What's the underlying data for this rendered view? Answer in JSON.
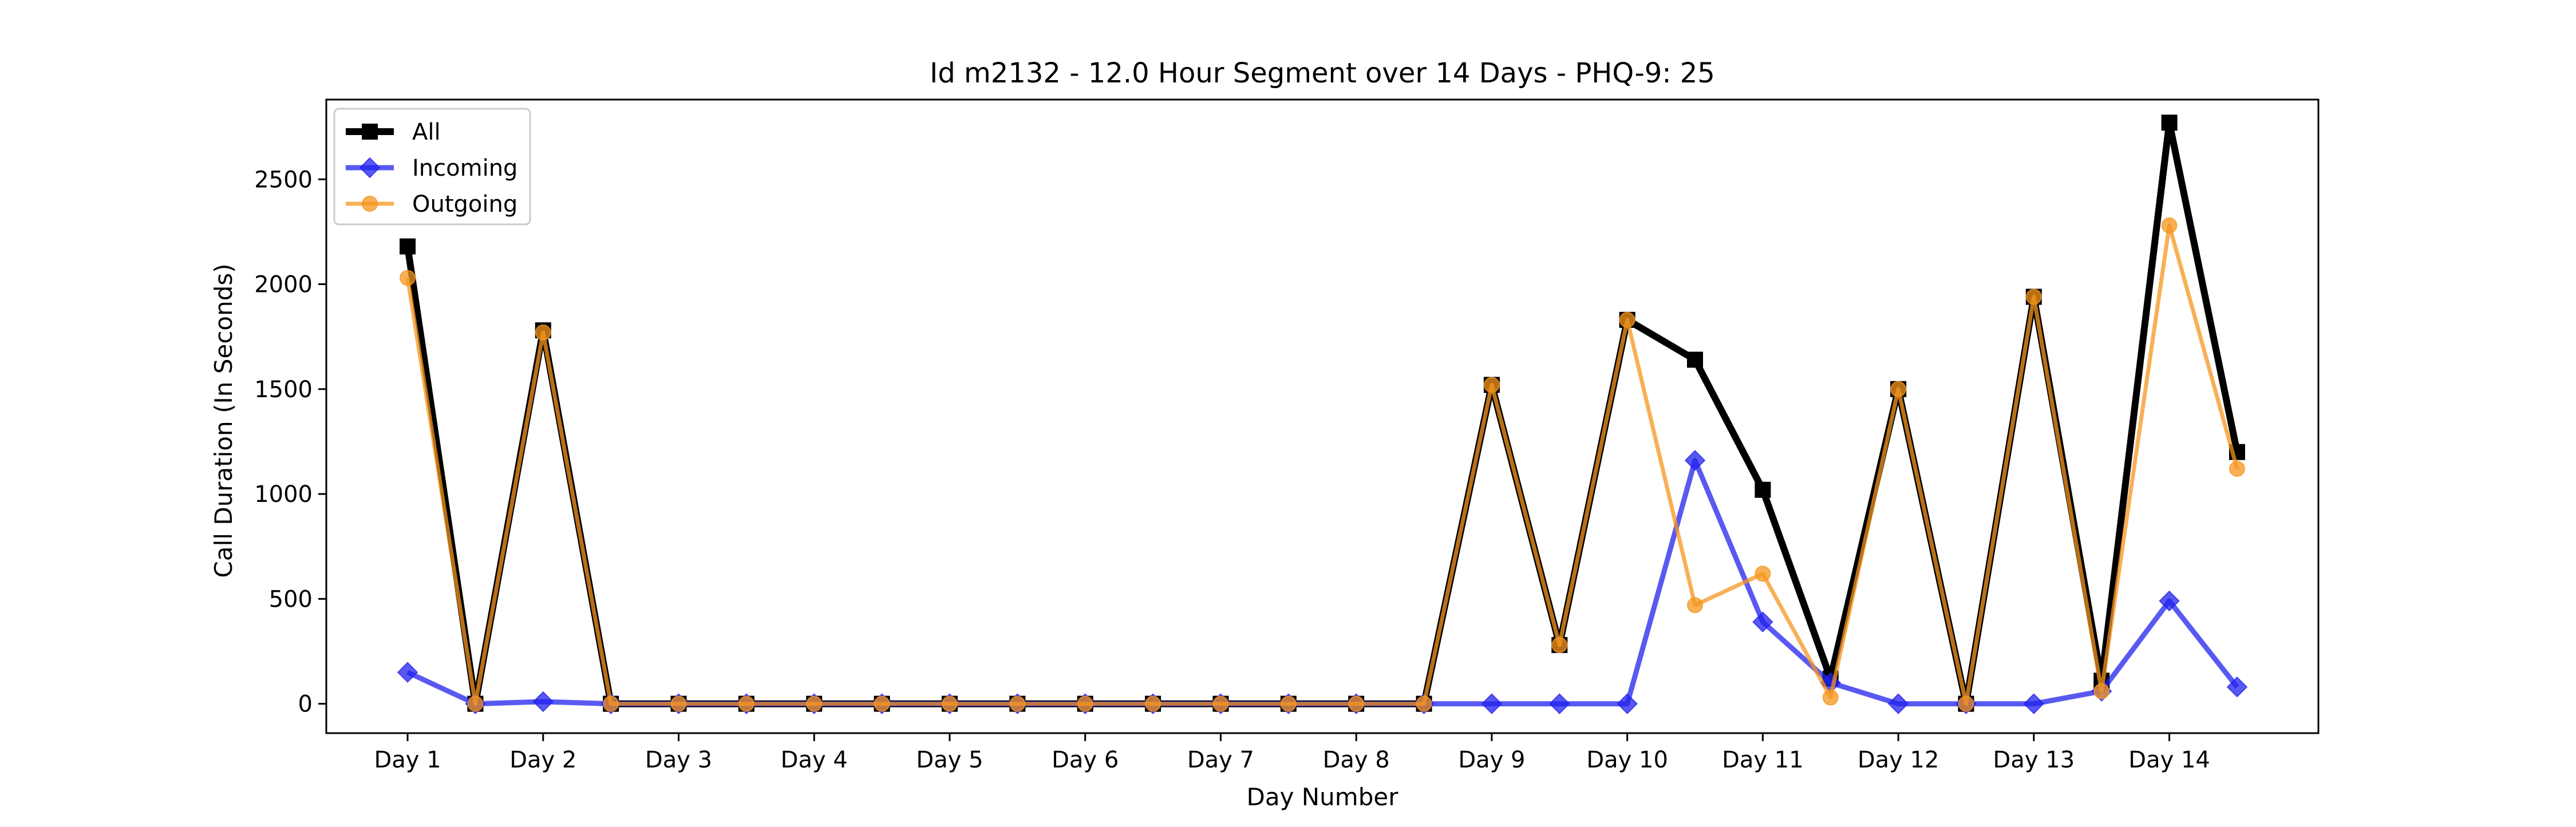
{
  "chart_data": {
    "type": "line",
    "title": "Id m2132 - 12.0 Hour Segment over 14 Days - PHQ-9: 25",
    "xlabel": "Day Number",
    "ylabel": "Call Duration (In Seconds)",
    "x_tick_labels": [
      "Day 1",
      "Day 2",
      "Day 3",
      "Day 4",
      "Day 5",
      "Day 6",
      "Day 7",
      "Day 8",
      "Day 9",
      "Day 10",
      "Day 11",
      "Day 12",
      "Day 13",
      "Day 14"
    ],
    "x": [
      1,
      1.5,
      2,
      2.5,
      3,
      3.5,
      4,
      4.5,
      5,
      5.5,
      6,
      6.5,
      7,
      7.5,
      8,
      8.5,
      9,
      9.5,
      10,
      10.5,
      11,
      11.5,
      12,
      12.5,
      13,
      13.5,
      14,
      14.5
    ],
    "xlim": [
      0.4,
      15.1
    ],
    "ylim": [
      -140,
      2880
    ],
    "y_ticks": [
      0,
      500,
      1000,
      1500,
      2000,
      2500
    ],
    "grid": false,
    "legend_position": "upper-left",
    "series": [
      {
        "name": "All",
        "color": "#000000",
        "marker": "square",
        "values": [
          2180,
          0,
          1780,
          0,
          0,
          0,
          0,
          0,
          0,
          0,
          0,
          0,
          0,
          0,
          0,
          0,
          1520,
          280,
          1830,
          1640,
          1020,
          120,
          1500,
          0,
          1940,
          110,
          2770,
          1200
        ]
      },
      {
        "name": "Incoming",
        "color": "#2222ee",
        "marker": "diamond",
        "values": [
          150,
          0,
          10,
          0,
          0,
          0,
          0,
          0,
          0,
          0,
          0,
          0,
          0,
          0,
          0,
          0,
          0,
          0,
          0,
          1160,
          390,
          100,
          0,
          0,
          0,
          60,
          490,
          80
        ]
      },
      {
        "name": "Outgoing",
        "color": "#f5961e",
        "marker": "circle",
        "values": [
          2030,
          0,
          1770,
          0,
          0,
          0,
          0,
          0,
          0,
          0,
          0,
          0,
          0,
          0,
          0,
          0,
          1520,
          280,
          1830,
          470,
          620,
          30,
          1500,
          0,
          1940,
          60,
          2280,
          1120
        ]
      }
    ]
  }
}
